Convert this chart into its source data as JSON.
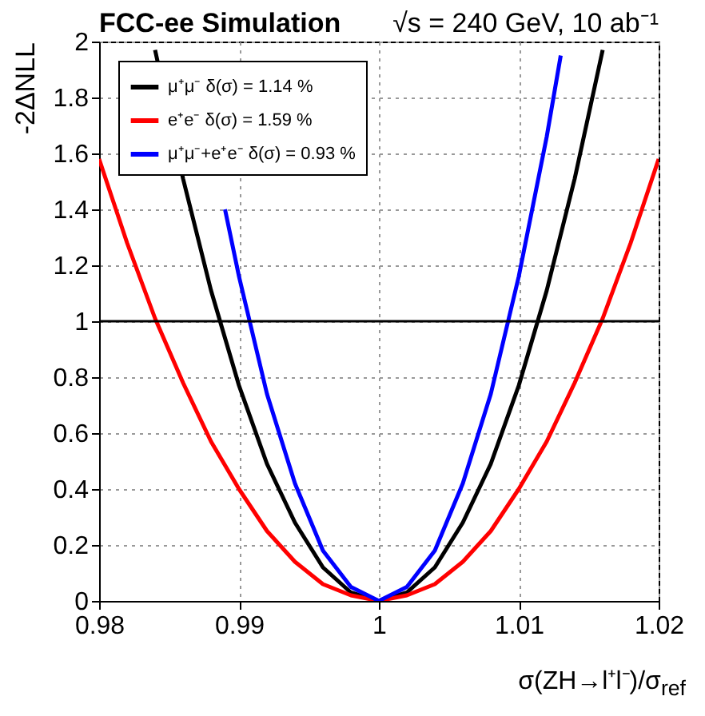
{
  "chart_data": {
    "type": "line",
    "title": "FCC-ee Simulation",
    "annotations": [
      "√s = 240 GeV, 10 ab⁻¹"
    ],
    "xlabel": "σ(ZH→l⁺l⁻)/σ$_{ref}$",
    "ylabel": "-2ΔNLL",
    "series": [
      {
        "name": "μ⁺μ⁻ δ(σ) = 1.14 %",
        "color": "#000000",
        "x": [
          0.984,
          0.986,
          0.988,
          0.99,
          0.992,
          0.994,
          0.996,
          0.998,
          1,
          1.002,
          1.004,
          1.006,
          1.008,
          1.01,
          1.012,
          1.014,
          1.016
        ],
        "values": [
          1.97,
          1.51,
          1.11,
          0.77,
          0.49,
          0.28,
          0.12,
          0.03,
          0,
          0.03,
          0.12,
          0.28,
          0.49,
          0.77,
          1.11,
          1.51,
          1.97
        ]
      },
      {
        "name": "e⁺e⁻ δ(σ) = 1.59 %",
        "color": "#ff0000",
        "x": [
          0.98,
          0.982,
          0.984,
          0.986,
          0.988,
          0.99,
          0.992,
          0.994,
          0.996,
          0.998,
          1,
          1.002,
          1.004,
          1.006,
          1.008,
          1.01,
          1.012,
          1.014,
          1.016,
          1.018,
          1.02
        ],
        "values": [
          1.58,
          1.28,
          1.01,
          0.78,
          0.57,
          0.4,
          0.25,
          0.14,
          0.06,
          0.02,
          0,
          0.02,
          0.06,
          0.14,
          0.25,
          0.4,
          0.57,
          0.78,
          1.01,
          1.28,
          1.58
        ]
      },
      {
        "name": "μ⁺μ⁻+e⁺e⁻ δ(σ) = 0.93 %",
        "color": "#0000ff",
        "x": [
          0.989,
          0.99,
          0.992,
          0.994,
          0.996,
          0.998,
          1,
          1.002,
          1.004,
          1.006,
          1.008,
          1.01,
          1.012,
          1.013
        ],
        "values": [
          1.4,
          1.16,
          0.74,
          0.42,
          0.18,
          0.05,
          0,
          0.05,
          0.18,
          0.42,
          0.74,
          1.16,
          1.66,
          1.95
        ]
      }
    ],
    "xlim": [
      0.98,
      1.02
    ],
    "xticks": [
      0.98,
      0.99,
      1,
      1.01,
      1.02
    ],
    "ylim": [
      0,
      2
    ],
    "yticks": [
      0,
      0.2,
      0.4,
      0.6,
      0.8,
      1,
      1.2,
      1.4,
      1.6,
      1.8,
      2
    ],
    "ref_lines": [
      {
        "axis": "y",
        "value": 1,
        "color": "#000000"
      }
    ],
    "grid": true,
    "legend": "top left"
  }
}
